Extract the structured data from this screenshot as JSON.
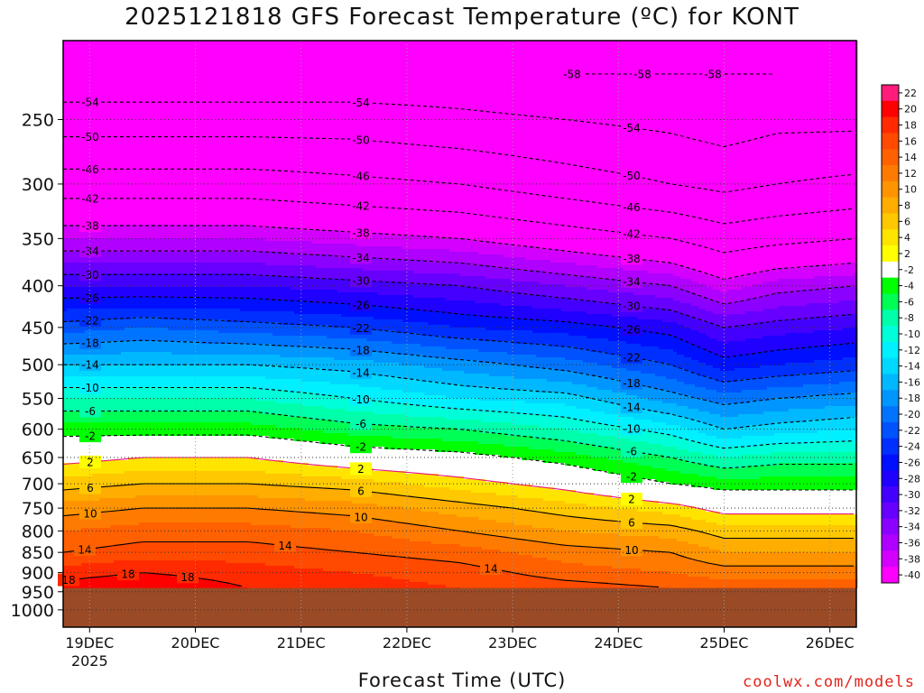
{
  "title": "2025121818 GFS Forecast Temperature (ºC) for KONT",
  "xaxis_title": "Forecast Time (UTC)",
  "credit": "coolwx.com/models",
  "colors": {
    "background": "#ffffff",
    "ground": "#9b4a26",
    "freezing_line": "#e8147c",
    "contour": "#000000"
  },
  "chart_data": {
    "type": "heatmap",
    "title": "2025121818 GFS Forecast Temperature (ºC) for KONT",
    "xlabel": "Forecast Time (UTC)",
    "ylabel": "",
    "x_ticks": [
      {
        "t": 0,
        "label": "19DEC",
        "sublabel": "2025"
      },
      {
        "t": 24,
        "label": "20DEC"
      },
      {
        "t": 48,
        "label": "21DEC"
      },
      {
        "t": 72,
        "label": "22DEC"
      },
      {
        "t": 96,
        "label": "23DEC"
      },
      {
        "t": 120,
        "label": "24DEC"
      },
      {
        "t": 144,
        "label": "25DEC"
      },
      {
        "t": 168,
        "label": "26DEC"
      }
    ],
    "x_range_hours_from_19dec00z": [
      -6,
      174
    ],
    "y_axis": "pressure (hPa), log scale, inverted",
    "y_ticks": [
      250,
      300,
      350,
      400,
      450,
      500,
      550,
      600,
      650,
      700,
      750,
      800,
      850,
      900,
      950,
      1000
    ],
    "ylim": [
      1050,
      200
    ],
    "surface_pressure": 940,
    "colorbar": {
      "labels": [
        22,
        20,
        18,
        16,
        14,
        12,
        10,
        8,
        6,
        4,
        2,
        -2,
        -4,
        -6,
        -8,
        -10,
        -12,
        -14,
        -16,
        -18,
        -20,
        -22,
        -24,
        -26,
        -28,
        -30,
        -32,
        -34,
        -36,
        -38,
        -40
      ],
      "colors": [
        "#ff1c7a",
        "#ff0000",
        "#ff2a00",
        "#ff4a00",
        "#ff6000",
        "#ff7a00",
        "#ff9400",
        "#ffad00",
        "#ffc800",
        "#ffe400",
        "#ffff00",
        "#ffffff",
        "#00ff00",
        "#00ff55",
        "#00ffaa",
        "#00ffd8",
        "#00f0ff",
        "#00d8ff",
        "#00b8ff",
        "#0096ff",
        "#0074ff",
        "#0052ff",
        "#0030ff",
        "#0010ff",
        "#2000ff",
        "#4400ff",
        "#6800ff",
        "#8c00ff",
        "#b000ff",
        "#d400ff",
        "#ff00ff"
      ]
    },
    "profile_pressures": [
      220,
      250,
      300,
      350,
      400,
      450,
      500,
      550,
      600,
      650,
      700,
      750,
      800,
      850,
      900,
      940
    ],
    "profiles": [
      {
        "t": -6,
        "temps": [
          -57,
          -52,
          -44,
          -36,
          -28,
          -21,
          -14,
          -8,
          -3,
          1,
          5,
          9,
          12,
          14,
          17,
          19
        ]
      },
      {
        "t": 12,
        "temps": [
          -57,
          -52,
          -44,
          -36,
          -28,
          -20,
          -14,
          -8,
          -3,
          2,
          6,
          10,
          13,
          15,
          18,
          20
        ]
      },
      {
        "t": 36,
        "temps": [
          -57,
          -52,
          -44,
          -36,
          -28,
          -21,
          -14,
          -8,
          -3,
          2,
          6,
          10,
          13,
          15,
          17,
          18
        ]
      },
      {
        "t": 60,
        "temps": [
          -57,
          -52,
          -45,
          -37,
          -29,
          -22,
          -15,
          -10,
          -5,
          0,
          5,
          9,
          12,
          14,
          16,
          17
        ]
      },
      {
        "t": 84,
        "temps": [
          -57,
          -53,
          -46,
          -38,
          -30,
          -24,
          -17,
          -12,
          -6,
          -1,
          3,
          7,
          10,
          13,
          15,
          16
        ]
      },
      {
        "t": 108,
        "temps": [
          -58,
          -54,
          -48,
          -40,
          -32,
          -25,
          -19,
          -13,
          -8,
          -3,
          1,
          5,
          8,
          11,
          13,
          15
        ]
      },
      {
        "t": 132,
        "temps": [
          -58,
          -55,
          -50,
          -42,
          -34,
          -27,
          -22,
          -17,
          -11,
          -6,
          -2,
          3,
          7,
          10,
          12,
          14
        ]
      },
      {
        "t": 144,
        "temps": [
          -58,
          -56,
          -51,
          -44,
          -37,
          -30,
          -25,
          -19,
          -14,
          -8,
          -3,
          1,
          5,
          8,
          11,
          13
        ]
      },
      {
        "t": 156,
        "temps": [
          -58,
          -55,
          -50,
          -43,
          -35,
          -29,
          -24,
          -18,
          -13,
          -7,
          -3,
          1,
          5,
          8,
          11,
          13
        ]
      },
      {
        "t": 174,
        "temps": [
          -57,
          -55,
          -49,
          -42,
          -34,
          -28,
          -23,
          -17,
          -12,
          -7,
          -3,
          1,
          5,
          8,
          11,
          13
        ]
      }
    ],
    "contour_levels": [
      -58,
      -54,
      -50,
      -46,
      -42,
      -38,
      -34,
      -30,
      -26,
      -22,
      -18,
      -14,
      -10,
      -6,
      -2,
      2,
      6,
      10,
      14,
      18
    ]
  }
}
